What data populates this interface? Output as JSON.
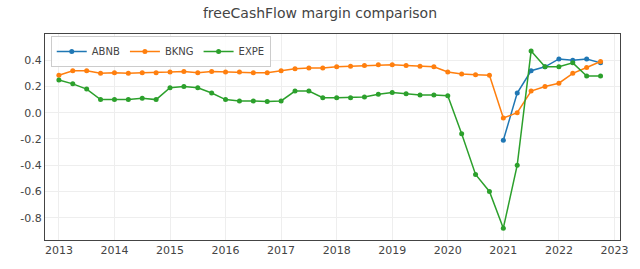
{
  "chart_data": {
    "type": "line",
    "title": "freeCashFlow margin comparison",
    "series": [
      {
        "name": "ABNB",
        "color": "#1f77b4",
        "marker": "circle",
        "x": [
          2021.0,
          2021.25,
          2021.5,
          2021.75,
          2022.0,
          2022.25,
          2022.5,
          2022.75
        ],
        "values": [
          -0.21,
          0.15,
          0.32,
          0.35,
          0.41,
          0.4,
          0.41,
          0.38
        ]
      },
      {
        "name": "BKNG",
        "color": "#ff7f0e",
        "marker": "circle",
        "x": [
          2013.0,
          2013.25,
          2013.5,
          2013.75,
          2014.0,
          2014.25,
          2014.5,
          2014.75,
          2015.0,
          2015.25,
          2015.5,
          2015.75,
          2016.0,
          2016.25,
          2016.5,
          2016.75,
          2017.0,
          2017.25,
          2017.5,
          2017.75,
          2018.0,
          2018.25,
          2018.5,
          2018.75,
          2019.0,
          2019.25,
          2019.5,
          2019.75,
          2020.0,
          2020.25,
          2020.5,
          2020.75,
          2021.0,
          2021.25,
          2021.5,
          2021.75,
          2022.0,
          2022.25,
          2022.5,
          2022.75
        ],
        "values": [
          0.285,
          0.32,
          0.32,
          0.3,
          0.305,
          0.3,
          0.305,
          0.305,
          0.31,
          0.315,
          0.305,
          0.315,
          0.31,
          0.31,
          0.305,
          0.305,
          0.32,
          0.335,
          0.34,
          0.34,
          0.35,
          0.355,
          0.36,
          0.365,
          0.365,
          0.36,
          0.355,
          0.35,
          0.31,
          0.295,
          0.29,
          0.285,
          -0.04,
          0.0,
          0.165,
          0.2,
          0.225,
          0.3,
          0.345,
          0.39
        ]
      },
      {
        "name": "EXPE",
        "color": "#2ca02c",
        "marker": "circle",
        "x": [
          2013.0,
          2013.25,
          2013.5,
          2013.75,
          2014.0,
          2014.25,
          2014.5,
          2014.75,
          2015.0,
          2015.25,
          2015.5,
          2015.75,
          2016.0,
          2016.25,
          2016.5,
          2016.75,
          2017.0,
          2017.25,
          2017.5,
          2017.75,
          2018.0,
          2018.25,
          2018.5,
          2018.75,
          2019.0,
          2019.25,
          2019.5,
          2019.75,
          2020.0,
          2020.25,
          2020.5,
          2020.75,
          2021.0,
          2021.25,
          2021.5,
          2021.75,
          2022.0,
          2022.25,
          2022.5,
          2022.75
        ],
        "values": [
          0.25,
          0.22,
          0.18,
          0.1,
          0.1,
          0.1,
          0.11,
          0.1,
          0.19,
          0.2,
          0.19,
          0.15,
          0.1,
          0.09,
          0.09,
          0.085,
          0.09,
          0.165,
          0.165,
          0.115,
          0.115,
          0.115,
          0.12,
          0.14,
          0.155,
          0.145,
          0.135,
          0.135,
          0.13,
          -0.16,
          -0.47,
          -0.6,
          -0.88,
          -0.4,
          0.47,
          0.35,
          0.35,
          0.38,
          0.28,
          0.28
        ]
      }
    ],
    "xlim": [
      2012.75,
      2023.1
    ],
    "xticks": [
      2013,
      2014,
      2015,
      2016,
      2017,
      2018,
      2019,
      2020,
      2021,
      2022,
      2023
    ],
    "ylim": [
      -0.97,
      0.6
    ],
    "yticks": [
      -0.8,
      -0.6,
      -0.4,
      -0.2,
      {
        "value": 0.0,
        "label": "0.0"
      },
      0.2,
      0.4
    ],
    "grid": true,
    "legend": "upper left"
  }
}
